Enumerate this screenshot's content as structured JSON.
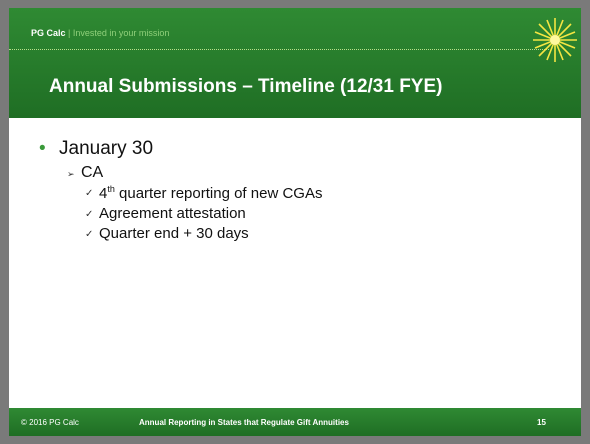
{
  "header": {
    "brand": "PG Calc",
    "separator": "|",
    "tagline": "Invested in your mission",
    "title": "Annual Submissions – Timeline (12/31 FYE)"
  },
  "content": {
    "bullet": "January 30",
    "sub_bullet": "CA",
    "items": [
      {
        "prefix": "4",
        "sup": "th",
        "rest": " quarter reporting of new CGAs"
      },
      {
        "text": "Agreement attestation"
      },
      {
        "text": "Quarter end + 30 days"
      }
    ]
  },
  "footer": {
    "copyright": "© 2016 PG Calc",
    "center": "Annual Reporting in States that Regulate Gift Annuities",
    "page": "15"
  }
}
